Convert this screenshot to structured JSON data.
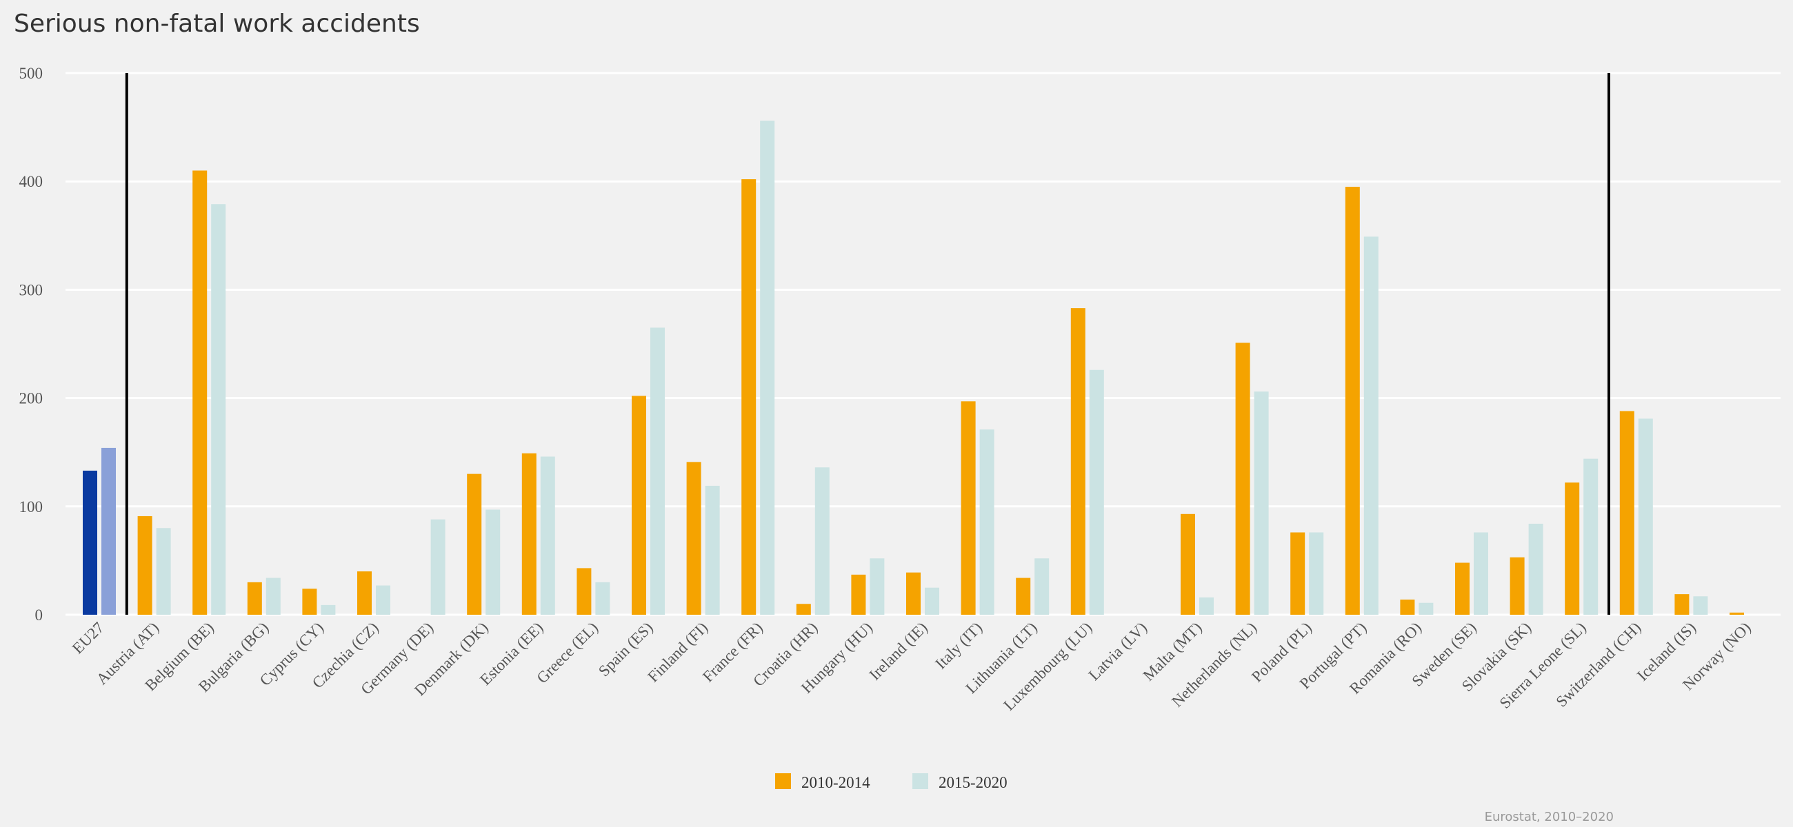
{
  "title": "Serious non-fatal work accidents",
  "source": "Eurostat, 2010–2020",
  "colors": {
    "series_1": "#f5a300",
    "series_2": "#cbe3e3",
    "eu_series_1": "#0a3aa0",
    "eu_series_2": "#8aa0d8",
    "grid": "#ffffff",
    "separator": "#000000"
  },
  "chart_data": {
    "type": "bar",
    "title": "Serious non-fatal work accidents",
    "xlabel": "",
    "ylabel": "",
    "ylim": [
      0,
      500
    ],
    "yticks": [
      0,
      100,
      200,
      300,
      400,
      500
    ],
    "grid": true,
    "legend_position": "bottom",
    "categories": [
      "EU27",
      "Austria (AT)",
      "Belgium (BE)",
      "Bulgaria (BG)",
      "Cyprus (CY)",
      "Czechia (CZ)",
      "Germany (DE)",
      "Denmark (DK)",
      "Estonia (EE)",
      "Greece (EL)",
      "Spain (ES)",
      "Finland (FI)",
      "France (FR)",
      "Croatia (HR)",
      "Hungary (HU)",
      "Ireland (IE)",
      "Italy (IT)",
      "Lithuania (LT)",
      "Luxembourg (LU)",
      "Latvia (LV)",
      "Malta (MT)",
      "Netherlands (NL)",
      "Poland (PL)",
      "Portugal (PT)",
      "Romania (RO)",
      "Sweden (SE)",
      "Slovakia (SK)",
      "Sierra Leone (SL)",
      "Switzerland (CH)",
      "Iceland (IS)",
      "Norway (NO)"
    ],
    "series": [
      {
        "name": "2010-2014",
        "values": [
          133,
          91,
          410,
          30,
          24,
          40,
          0,
          130,
          149,
          43,
          202,
          141,
          402,
          10,
          37,
          39,
          197,
          34,
          283,
          0,
          93,
          251,
          76,
          395,
          14,
          48,
          53,
          122,
          188,
          19,
          2
        ]
      },
      {
        "name": "2015-2020",
        "values": [
          154,
          80,
          379,
          34,
          9,
          27,
          88,
          97,
          146,
          30,
          265,
          119,
          456,
          136,
          52,
          25,
          171,
          52,
          226,
          0,
          16,
          206,
          76,
          349,
          11,
          76,
          84,
          144,
          181,
          17,
          0
        ]
      }
    ],
    "separators_after_category": [
      "EU27",
      "Sierra Leone (SL)"
    ]
  }
}
